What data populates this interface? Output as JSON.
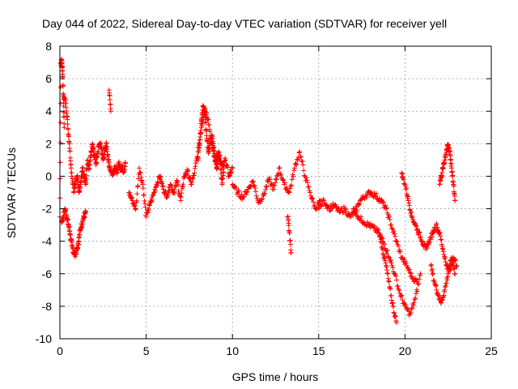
{
  "chart_data": {
    "type": "scatter",
    "title": "Day 044 of 2022, Sidereal Day-to-day VTEC variation (SDTVAR) for receiver yell",
    "xlabel": "GPS time / hours",
    "ylabel": "SDTVAR / TECUs",
    "xlim": [
      0,
      25
    ],
    "ylim": [
      -10,
      8
    ],
    "x_ticks": [
      0,
      5,
      10,
      15,
      20,
      25
    ],
    "y_ticks": [
      -10,
      -8,
      -6,
      -4,
      -2,
      0,
      2,
      4,
      6,
      8
    ],
    "grid": true,
    "marker": "+",
    "colors": {
      "series": "#ff0000",
      "grid": "#a0a0a0",
      "axis": "#000000"
    },
    "segments": [
      {
        "x": [
          0.0,
          0.05,
          0.1,
          0.15,
          0.2,
          0.25
        ],
        "y": [
          -2.5,
          6.8,
          7.2,
          6.5,
          5.0,
          3.0
        ]
      },
      {
        "x": [
          0.1,
          0.2,
          0.3,
          0.4,
          0.5,
          0.6,
          0.7,
          0.8,
          0.9,
          1.0,
          1.1
        ],
        "y": [
          -2.8,
          -2.5,
          -2.0,
          -2.5,
          -3.0,
          -3.6,
          -4.3,
          -4.7,
          -4.8,
          -4.5,
          -4.0
        ]
      },
      {
        "x": [
          0.2,
          0.35,
          0.45,
          0.55,
          0.65,
          0.75
        ],
        "y": [
          4.9,
          4.5,
          3.2,
          2.0,
          0.5,
          -0.5
        ]
      },
      {
        "x": [
          1.1,
          1.2,
          1.3,
          1.4,
          1.5
        ],
        "y": [
          -3.8,
          -3.2,
          -2.8,
          -2.5,
          -2.2
        ]
      },
      {
        "x": [
          0.8,
          0.9,
          1.0,
          1.1,
          1.2,
          1.3,
          1.4,
          1.5,
          1.6,
          1.7,
          1.8,
          1.9,
          2.0,
          2.1,
          2.2,
          2.3,
          2.4,
          2.5,
          2.6,
          2.7,
          2.8,
          2.9,
          3.0,
          3.1,
          3.2,
          3.3,
          3.4,
          3.5,
          3.6,
          3.7,
          3.8
        ],
        "y": [
          -1.0,
          -0.5,
          0.0,
          -1.0,
          -0.5,
          0.5,
          0.0,
          -0.5,
          1.0,
          0.5,
          1.5,
          2.0,
          1.2,
          0.8,
          1.5,
          2.0,
          1.8,
          1.0,
          1.5,
          2.0,
          1.0,
          0.5,
          0.2,
          0.3,
          0.5,
          0.2,
          0.8,
          0.5,
          0.6,
          0.3,
          0.8
        ]
      },
      {
        "x": [
          2.85,
          2.95
        ],
        "y": [
          5.3,
          4.0
        ]
      },
      {
        "x": [
          4.0,
          4.2,
          4.4,
          4.6,
          4.8,
          5.0,
          5.2,
          5.4,
          5.6,
          5.8,
          6.0,
          6.2,
          6.4,
          6.6,
          6.8,
          7.0,
          7.2,
          7.4,
          7.6,
          7.8,
          8.0,
          8.2,
          8.4,
          8.6,
          8.8,
          9.0,
          9.2,
          9.4,
          9.6,
          9.8,
          10.0
        ],
        "y": [
          -1.0,
          -1.5,
          -2.0,
          0.5,
          -0.5,
          -2.5,
          -1.8,
          -1.2,
          -0.5,
          0.0,
          -0.8,
          -1.2,
          -0.5,
          -1.0,
          -0.3,
          -1.5,
          0.0,
          0.3,
          -0.5,
          0.2,
          1.5,
          3.0,
          4.2,
          3.5,
          2.0,
          1.0,
          1.5,
          0.5,
          1.0,
          0.0,
          0.5
        ]
      },
      {
        "x": [
          8.0,
          8.1,
          8.2,
          8.3,
          8.4,
          8.5,
          8.6,
          8.7,
          8.8,
          8.9,
          9.0,
          9.1,
          9.2,
          9.3,
          9.4,
          9.5
        ],
        "y": [
          1.0,
          2.0,
          3.5,
          4.3,
          4.0,
          2.5,
          1.5,
          2.0,
          2.5,
          1.8,
          1.0,
          0.5,
          1.2,
          0.8,
          -0.5,
          0.5
        ]
      },
      {
        "x": [
          10.0,
          10.3,
          10.6,
          10.9,
          11.2,
          11.5,
          11.8,
          12.1,
          12.4,
          12.7,
          13.0,
          13.3,
          13.6,
          13.9,
          14.2,
          14.5,
          14.8,
          15.1
        ],
        "y": [
          -0.5,
          -1.0,
          -1.3,
          -0.8,
          -0.3,
          -1.6,
          -1.2,
          -0.2,
          -0.8,
          0.5,
          -0.5,
          -1.0,
          0.5,
          1.5,
          0.0,
          -1.0,
          -2.0,
          -1.5
        ]
      },
      {
        "x": [
          13.2,
          13.3,
          13.4
        ],
        "y": [
          -2.5,
          -3.5,
          -4.7
        ]
      },
      {
        "x": [
          15.0,
          15.3,
          15.6,
          15.9,
          16.2,
          16.5,
          16.8,
          17.1,
          17.4,
          17.7,
          18.0,
          18.3,
          18.6,
          18.9,
          19.2,
          19.5,
          19.8,
          20.1,
          20.4,
          20.7
        ],
        "y": [
          -2.0,
          -1.5,
          -2.0,
          -1.8,
          -2.2,
          -2.0,
          -2.5,
          -2.2,
          -1.5,
          -1.2,
          -1.0,
          -1.2,
          -1.5,
          -2.0,
          -3.0,
          -4.0,
          -5.0,
          -5.5,
          -6.2,
          -6.5
        ]
      },
      {
        "x": [
          17.0,
          17.3,
          17.6,
          17.9,
          18.2,
          18.5,
          18.8,
          19.1,
          19.4,
          19.7,
          20.0,
          20.3,
          20.6,
          20.9
        ],
        "y": [
          -2.0,
          -2.5,
          -2.8,
          -3.0,
          -3.2,
          -3.5,
          -4.2,
          -5.0,
          -6.0,
          -7.2,
          -8.0,
          -8.5,
          -7.5,
          -6.0
        ]
      },
      {
        "x": [
          18.5,
          18.7,
          18.9,
          19.1,
          19.3,
          19.5
        ],
        "y": [
          -3.5,
          -4.5,
          -5.5,
          -6.8,
          -8.0,
          -9.0
        ]
      },
      {
        "x": [
          19.8,
          20.0,
          20.2,
          20.4,
          20.6,
          20.8,
          21.0,
          21.2,
          21.4,
          21.6,
          21.8,
          22.0,
          22.2,
          22.4,
          22.6,
          22.8,
          23.0
        ],
        "y": [
          0.2,
          -0.5,
          -1.5,
          -2.5,
          -3.0,
          -3.5,
          -4.0,
          -4.5,
          -4.0,
          -3.5,
          -3.0,
          -3.5,
          -4.5,
          -5.5,
          -5.8,
          -5.0,
          -5.5
        ]
      },
      {
        "x": [
          21.5,
          21.7,
          21.9,
          22.1,
          22.3,
          22.5,
          22.7,
          22.9
        ],
        "y": [
          -5.5,
          -6.5,
          -7.2,
          -7.8,
          -7.0,
          -6.0,
          -5.0,
          -6.0
        ]
      },
      {
        "x": [
          22.0,
          22.1,
          22.2,
          22.3,
          22.4,
          22.5,
          22.6,
          22.7,
          22.8,
          22.9
        ],
        "y": [
          -0.5,
          0.0,
          0.5,
          1.0,
          1.6,
          1.9,
          1.5,
          0.5,
          -0.5,
          -1.5
        ]
      }
    ]
  }
}
